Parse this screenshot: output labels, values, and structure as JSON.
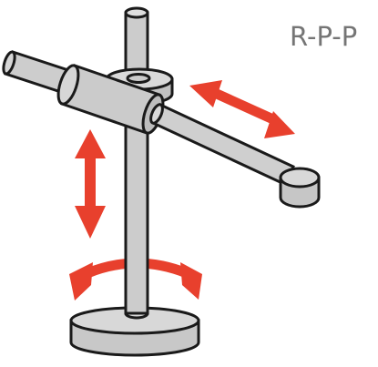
{
  "diagram": {
    "label": "R-P-P",
    "colors": {
      "metal": "#cfcfcf",
      "metal_dark": "#b6b6b6",
      "metal_light": "#dedede",
      "outline": "#1a1a1a",
      "arrow": "#e8402d",
      "label": "#757575"
    },
    "parts": [
      "base",
      "vertical-post",
      "collar",
      "horizontal-arm",
      "slider-sleeve",
      "end-effector"
    ],
    "motions": [
      {
        "name": "base-rotation",
        "kind": "revolute"
      },
      {
        "name": "vertical-translation",
        "kind": "prismatic"
      },
      {
        "name": "horizontal-translation",
        "kind": "prismatic"
      }
    ]
  }
}
